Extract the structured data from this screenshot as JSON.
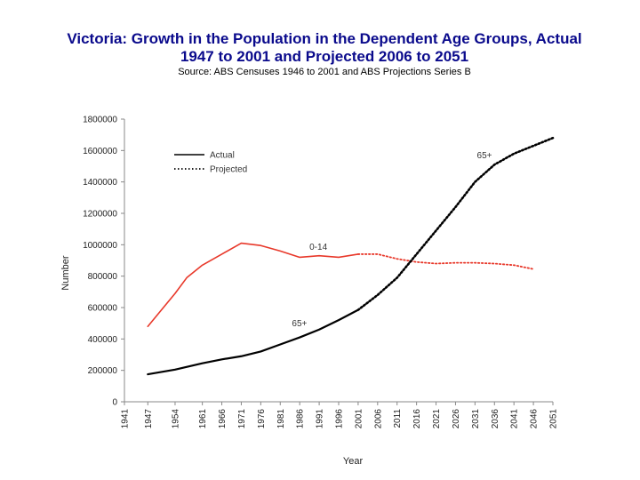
{
  "header": {
    "title_line1": "Victoria: Growth in the Population in the Dependent Age Groups, Actual",
    "title_line2": "1947 to 2001 and Projected 2006 to 2051",
    "source": "Source:   ABS Censuses 1946 to 2001 and ABS Projections Series B"
  },
  "colors": {
    "title": "#0a0a8c",
    "aged": "#000000",
    "young": "#e8382a",
    "axis": "#888888"
  },
  "chart_data": {
    "type": "line",
    "title": "Victoria: Growth in the Population in the Dependent Age Groups, Actual 1947 to 2001 and Projected 2006 to 2051",
    "xlabel": "Year",
    "ylabel": "Number",
    "xlim": [
      1941,
      2051
    ],
    "ylim": [
      0,
      1800000
    ],
    "grid": false,
    "legend_position": "top-left",
    "x_ticks": [
      "1941",
      "1947",
      "1954",
      "1961",
      "1966",
      "1971",
      "1976",
      "1981",
      "1986",
      "1991",
      "1996",
      "2001",
      "2006",
      "2011",
      "2016",
      "2021",
      "2026",
      "2031",
      "2036",
      "2041",
      "2046",
      "2051"
    ],
    "y_ticks": [
      "0",
      "200000",
      "400000",
      "600000",
      "800000",
      "1000000",
      "1200000",
      "1400000",
      "1600000",
      "1800000"
    ],
    "legend": [
      {
        "label": "Actual",
        "style": "solid"
      },
      {
        "label": "Projected",
        "style": "dotted"
      }
    ],
    "annotations": [
      {
        "text": "0-14",
        "series": "0-14"
      },
      {
        "text": "65+",
        "series": "65+ actual"
      },
      {
        "text": "65+",
        "series": "65+ projected"
      }
    ],
    "series": [
      {
        "name": "0-14 actual",
        "group": "0-14",
        "style": "solid",
        "color": "#e8382a",
        "points": [
          [
            1947,
            480000
          ],
          [
            1951,
            600000
          ],
          [
            1954,
            690000
          ],
          [
            1957,
            790000
          ],
          [
            1961,
            870000
          ],
          [
            1966,
            940000
          ],
          [
            1971,
            1010000
          ],
          [
            1976,
            995000
          ],
          [
            1981,
            960000
          ],
          [
            1986,
            920000
          ],
          [
            1991,
            930000
          ],
          [
            1996,
            920000
          ],
          [
            2001,
            940000
          ]
        ]
      },
      {
        "name": "0-14 projected",
        "group": "0-14",
        "style": "dotted",
        "color": "#e8382a",
        "points": [
          [
            2001,
            940000
          ],
          [
            2006,
            940000
          ],
          [
            2011,
            910000
          ],
          [
            2016,
            890000
          ],
          [
            2021,
            880000
          ],
          [
            2026,
            885000
          ],
          [
            2031,
            885000
          ],
          [
            2036,
            880000
          ],
          [
            2041,
            870000
          ],
          [
            2046,
            845000
          ]
        ]
      },
      {
        "name": "65+ actual",
        "group": "65+",
        "style": "solid",
        "color": "#000000",
        "points": [
          [
            1947,
            175000
          ],
          [
            1954,
            205000
          ],
          [
            1961,
            245000
          ],
          [
            1966,
            270000
          ],
          [
            1971,
            290000
          ],
          [
            1976,
            320000
          ],
          [
            1981,
            365000
          ],
          [
            1986,
            410000
          ],
          [
            1991,
            460000
          ],
          [
            1996,
            520000
          ],
          [
            2001,
            585000
          ]
        ]
      },
      {
        "name": "65+ projected",
        "group": "65+",
        "style": "dotted",
        "color": "#000000",
        "points": [
          [
            2001,
            585000
          ],
          [
            2006,
            680000
          ],
          [
            2011,
            790000
          ],
          [
            2016,
            940000
          ],
          [
            2021,
            1090000
          ],
          [
            2026,
            1240000
          ],
          [
            2031,
            1400000
          ],
          [
            2036,
            1510000
          ],
          [
            2041,
            1580000
          ],
          [
            2046,
            1630000
          ],
          [
            2051,
            1680000
          ]
        ]
      }
    ]
  }
}
